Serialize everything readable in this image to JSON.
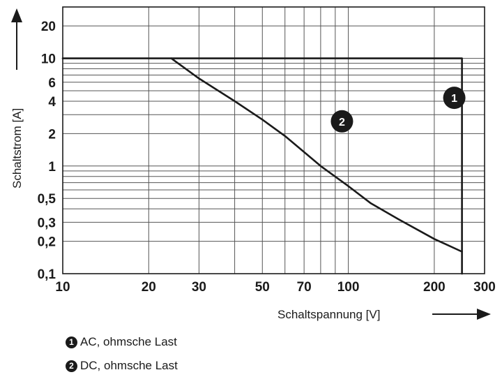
{
  "chart_data": {
    "type": "line",
    "x_scale": "log",
    "y_scale": "log",
    "xlim": [
      10,
      300
    ],
    "ylim": [
      0.1,
      30
    ],
    "xlabel": "Schaltspannung [V]",
    "ylabel": "Schaltstrom [A]",
    "x_ticks": [
      10,
      20,
      30,
      50,
      70,
      100,
      200,
      300
    ],
    "x_tick_labels": [
      "10",
      "20",
      "30",
      "50",
      "70",
      "100",
      "200",
      "300"
    ],
    "y_ticks": [
      0.1,
      0.2,
      0.3,
      0.5,
      1,
      2,
      4,
      6,
      10,
      20
    ],
    "y_tick_labels": [
      "0,1",
      "0,2",
      "0,3",
      "0,5",
      "1",
      "2",
      "4",
      "6",
      "10",
      "20"
    ],
    "grid": true,
    "series": [
      {
        "name": "AC, ohmsche Last",
        "marker": "1",
        "x": [
          10,
          250,
          250
        ],
        "y": [
          10,
          10,
          0.1
        ]
      },
      {
        "name": "DC, ohmsche Last",
        "marker": "2",
        "x": [
          24,
          30,
          40,
          50,
          60,
          70,
          80,
          100,
          120,
          150,
          200,
          250
        ],
        "y": [
          10,
          6.5,
          4,
          2.7,
          1.9,
          1.35,
          1.0,
          0.65,
          0.45,
          0.32,
          0.21,
          0.16
        ]
      }
    ],
    "legend_position": "bottom-left"
  },
  "legend": {
    "items": [
      {
        "marker": "1",
        "label": "AC, ohmsche Last"
      },
      {
        "marker": "2",
        "label": "DC, ohmsche Last"
      }
    ]
  },
  "colors": {
    "line": "#1a1a1a",
    "grid": "#555555"
  }
}
